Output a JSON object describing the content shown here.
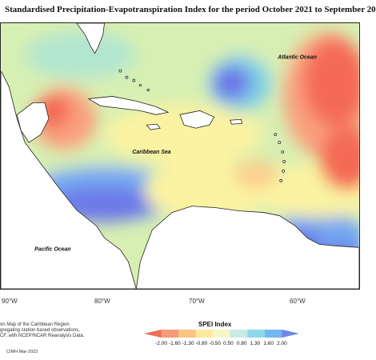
{
  "title": "Standardised Precipitation-Evapotranspiration Index for the period October 2021 to September 20",
  "map": {
    "labels": {
      "atlantic": "Atlantic Ocean",
      "caribbean": "Caribbean Sea",
      "pacific": "Pacific Ocean"
    },
    "longitude_labels": [
      "90°W",
      "80°W",
      "70°W",
      "60°W"
    ],
    "colors": {
      "strong_dry": "#f46a55",
      "dry": "#f9a07e",
      "moderate_dry": "#fbd08d",
      "slight_dry": "#faf3a2",
      "neutral": "#d7efb2",
      "slight_wet": "#b2e6cf",
      "wet": "#7ed0e6",
      "very_wet": "#73a8f1",
      "extreme_wet": "#6d79e8",
      "land": "#ffffff",
      "coastline": "#222222"
    }
  },
  "legend": {
    "title": "SPEI Index",
    "ticks": [
      "-2.00",
      "-1.60",
      "-1.30",
      "-0.80",
      "-0.50",
      "0.50",
      "0.80",
      "1.30",
      "1.60",
      "2.00"
    ],
    "colors": [
      "#ef6e58",
      "#f59a78",
      "#f8c583",
      "#fce99d",
      "#f5f7c7",
      "#c8ebe5",
      "#8fd8ec",
      "#74b7f0",
      "#6f86ea"
    ]
  },
  "footnote": {
    "line1": "on Map of the Caribbean Region",
    "line2": "gregating station based observations,",
    "line3": "CF, with NCEP/NCAR Reanalysis Data."
  },
  "credit": "CIMH Mar-2023"
}
